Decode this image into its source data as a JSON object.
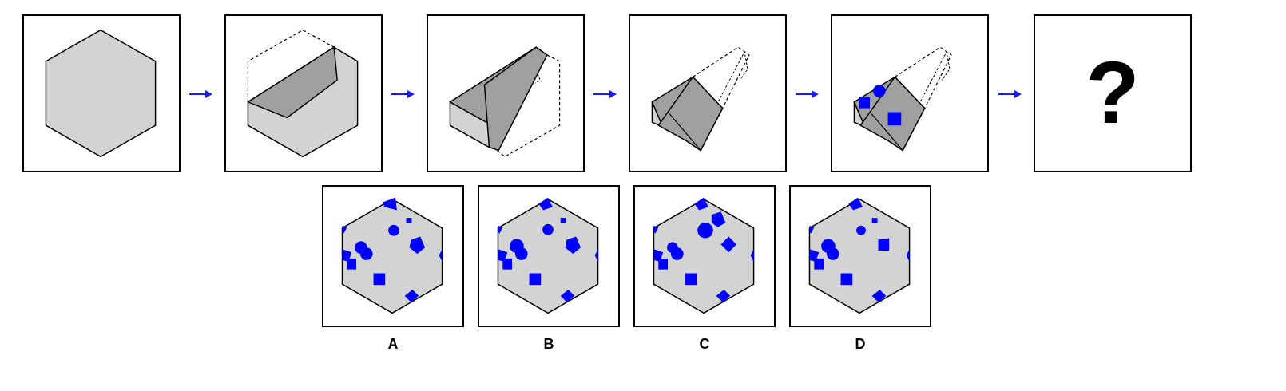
{
  "colors": {
    "sheet_fill": "#d3d3d3",
    "folded_fill": "#a0a0a0",
    "hole_fill": "#0000ff",
    "arrow": "#1a1aff",
    "outline": "#000000"
  },
  "sequence": {
    "steps": [
      "hexagon-sheet",
      "fold-1",
      "fold-2",
      "fold-3",
      "punched-shapes"
    ],
    "question_label": "?"
  },
  "options": [
    {
      "label": "A"
    },
    {
      "label": "B"
    },
    {
      "label": "C"
    },
    {
      "label": "D"
    }
  ],
  "icons": {
    "arrow": "right-arrow-icon",
    "hole_shapes": [
      "circle",
      "square",
      "pentagon"
    ]
  }
}
